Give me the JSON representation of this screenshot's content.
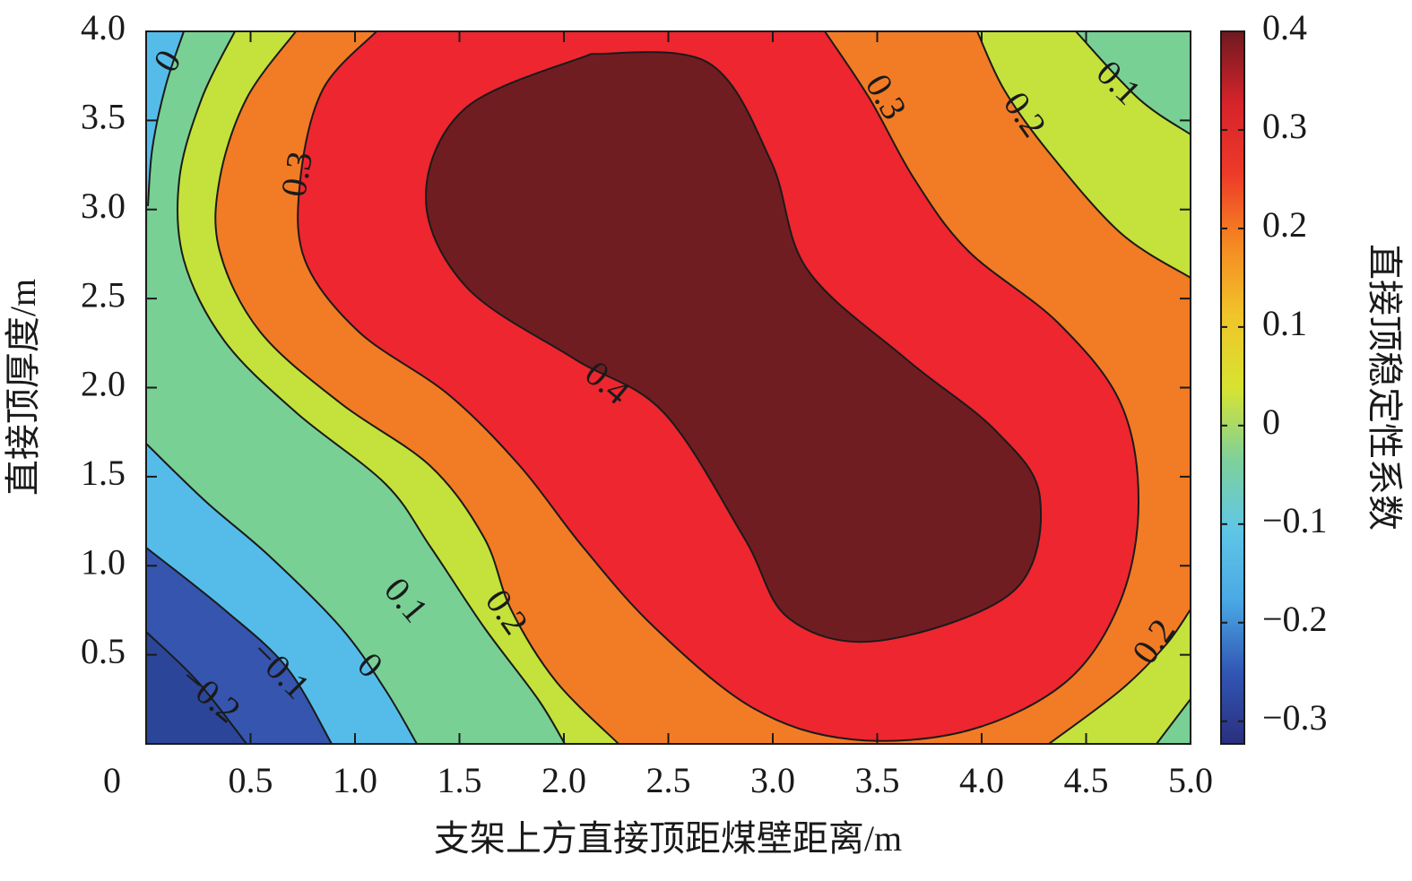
{
  "chart_data": {
    "type": "contour",
    "x_label": "支架上方直接顶距煤壁距离/m",
    "y_label": "直接顶厚度/m",
    "colorbar_label": "直接顶稳定性系数",
    "xlim": [
      0,
      5
    ],
    "ylim": [
      0,
      4
    ],
    "xticks": [
      0,
      0.5,
      {
        "value": 1,
        "label": "1.0"
      },
      1.5,
      {
        "value": 2,
        "label": "2.0"
      },
      2.5,
      {
        "value": 3,
        "label": "3.0"
      },
      3.5,
      {
        "value": 4,
        "label": "4.0"
      },
      4.5,
      {
        "value": 5,
        "label": "5.0"
      }
    ],
    "yticks": [
      0.5,
      {
        "value": 1,
        "label": "1.0"
      },
      1.5,
      {
        "value": 2,
        "label": "2.0"
      },
      2.5,
      {
        "value": 3,
        "label": "3.0"
      },
      3.5,
      {
        "value": 4,
        "label": "4.0"
      }
    ],
    "levels": [
      -0.2,
      -0.1,
      0,
      0.1,
      0.2,
      0.3,
      0.4
    ],
    "fill_colors": [
      "#2b4699",
      "#3555ae",
      "#55bcea",
      "#78d095",
      "#c4e23b",
      "#f27b25",
      "#ed262f",
      "#701d22"
    ],
    "contour_labels": [
      0,
      0.3,
      0.4,
      0.3,
      0.2,
      0.1,
      0.1,
      0.2,
      0,
      {
        "value": -0.1,
        "label": "−0.1"
      },
      {
        "value": -0.2,
        "label": "−0.2"
      },
      0.2
    ],
    "clim": [
      -0.323,
      0.4
    ],
    "cticks": [
      0.4,
      0.3,
      0.2,
      0.1,
      0,
      {
        "value": -0.1,
        "label": "−0.1"
      },
      {
        "value": -0.2,
        "label": "−0.2"
      },
      {
        "value": -0.3,
        "label": "−0.3"
      }
    ],
    "colormap": [
      "#2a2f7e",
      "#3156b4",
      "#4aa8e4",
      "#5fc6e6",
      "#7fd19a",
      "#d8e331",
      "#f0c52a",
      "#f58a22",
      "#ee3a28",
      "#d6232b",
      "#6e1a1f"
    ]
  }
}
